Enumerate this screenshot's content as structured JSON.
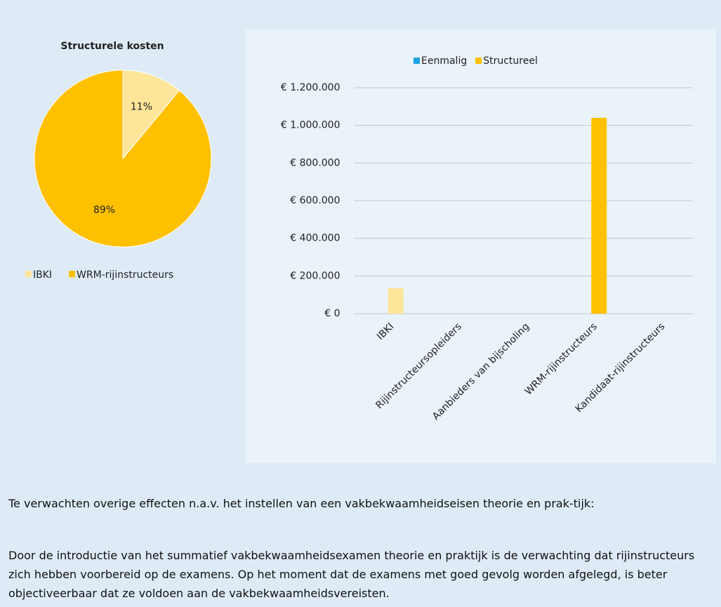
{
  "chart_data": [
    {
      "type": "pie",
      "title": "Structurele kosten",
      "categories": [
        "IBKI",
        "WRM-rijinstructeurs"
      ],
      "values": [
        11,
        89
      ],
      "value_labels": [
        "11%",
        "89%"
      ],
      "colors": [
        "#fee599",
        "#ffc000"
      ]
    },
    {
      "type": "bar",
      "categories": [
        "IBKI",
        "Rijinstructeursopleiders",
        "Aanbieders van bijscholing",
        "WRM-rijinstructeurs",
        "Kandidaat-rijinstructeurs"
      ],
      "series": [
        {
          "name": "Eenmalig",
          "color": "#1ba1e2",
          "values": [
            0,
            0,
            0,
            0,
            0
          ]
        },
        {
          "name": "Structureel",
          "color": "#ffc000",
          "colors": [
            "#fee599",
            "#ffc000",
            "#ffc000",
            "#ffc000",
            "#ffc000"
          ],
          "values": [
            135000,
            0,
            0,
            1040000,
            0
          ]
        }
      ],
      "ylim": [
        0,
        1200000
      ],
      "yticks": [
        {
          "value": 0,
          "label": "€ 0"
        },
        {
          "value": 200000,
          "label": "€ 200.000"
        },
        {
          "value": 400000,
          "label": "€ 400.000"
        },
        {
          "value": 600000,
          "label": "€ 600.000"
        },
        {
          "value": 800000,
          "label": "€ 800.000"
        },
        {
          "value": 1000000,
          "label": "€ 1.000.000"
        },
        {
          "value": 1200000,
          "label": "€ 1.200.000"
        }
      ],
      "grid": true
    }
  ],
  "text": {
    "heading": "Te verwachten overige effecten n.a.v. het instellen van een vakbekwaamheidseisen theorie en prak-tijk:",
    "paragraph": "Door de introductie van het summatief vakbekwaamheidsexamen theorie en praktijk is de verwachting dat rijinstructeurs zich hebben voorbereid op de examens. Op het moment dat de examens met goed gevolg worden afgelegd, is beter objectiveerbaar dat ze voldoen aan de vakbekwaamheidsvereisten."
  }
}
